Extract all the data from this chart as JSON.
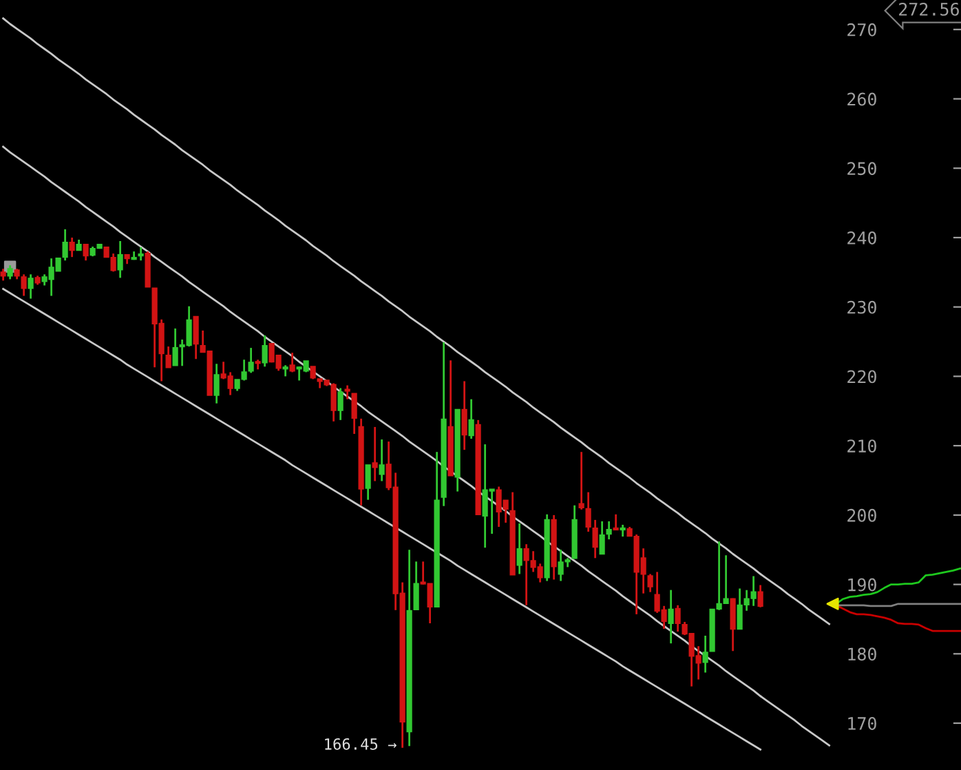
{
  "chart_data": [
    {
      "type": "candlestick",
      "categories": [
        null,
        null,
        null,
        null,
        null,
        null,
        null,
        null,
        null,
        null,
        null,
        null,
        null,
        null,
        null,
        null,
        null,
        null,
        null,
        null,
        null,
        null,
        null,
        null,
        null,
        null,
        null,
        null,
        null,
        null,
        null,
        null,
        null,
        null,
        null,
        null,
        null,
        null,
        null,
        null,
        null,
        null,
        null,
        null,
        null,
        null,
        null,
        null,
        null,
        null,
        null,
        null,
        null,
        null,
        null,
        null,
        null,
        null,
        null,
        null,
        null,
        null,
        null,
        null,
        null,
        null,
        null,
        null,
        null,
        null,
        null,
        null,
        null,
        null,
        null,
        null,
        null,
        null,
        null,
        null,
        null,
        null,
        null,
        null,
        null,
        null,
        null,
        null,
        null,
        null,
        null,
        null,
        null,
        null,
        null,
        null,
        null,
        null,
        null,
        null,
        null,
        null,
        null,
        null,
        null,
        null,
        null,
        null,
        null,
        null,
        null
      ],
      "ohlc": [
        [
          235,
          235.5,
          233.8,
          234.5
        ],
        [
          234.5,
          236,
          234,
          235.5
        ],
        [
          235.3,
          235.5,
          234,
          234.5
        ],
        [
          234.3,
          234.7,
          231.6,
          232.7
        ],
        [
          232.7,
          234.7,
          231.2,
          234.1
        ],
        [
          234.2,
          234.5,
          233.2,
          233.5
        ],
        [
          233.7,
          234.7,
          233.1,
          234.3
        ],
        [
          234,
          237,
          231.6,
          235.7
        ],
        [
          235.2,
          237,
          235.2,
          237
        ],
        [
          237.2,
          241.2,
          236.7,
          239.3
        ],
        [
          239.3,
          240,
          237.2,
          238.2
        ],
        [
          238.2,
          239.7,
          238.2,
          239
        ],
        [
          239,
          239,
          236.7,
          237.4
        ],
        [
          237.5,
          238.7,
          237.3,
          238.4
        ],
        [
          238.5,
          239.1,
          238.4,
          239
        ],
        [
          238.6,
          238.6,
          237.2,
          237.2
        ],
        [
          237.1,
          237.7,
          235.1,
          235.3
        ],
        [
          235.4,
          239.5,
          234.2,
          237.5
        ],
        [
          237.5,
          237.5,
          236.2,
          237
        ],
        [
          236.9,
          238,
          236.8,
          237.1
        ],
        [
          237.4,
          238.6,
          236.7,
          237.6
        ],
        [
          237.7,
          238,
          232.9,
          232.9
        ],
        [
          232.7,
          232.7,
          221.3,
          227.6
        ],
        [
          227.6,
          228.2,
          219.3,
          223.3
        ],
        [
          223,
          224.3,
          221.3,
          221.3
        ],
        [
          221.6,
          226.9,
          221.6,
          224.1
        ],
        [
          224.3,
          225.3,
          221.5,
          224.5
        ],
        [
          224.5,
          230.1,
          224.3,
          228.1
        ],
        [
          228.6,
          228.6,
          222.5,
          224.7
        ],
        [
          224.4,
          226.6,
          223.5,
          223.5
        ],
        [
          223.6,
          223.6,
          217.3,
          217.3
        ],
        [
          217.3,
          221.8,
          216.1,
          220.2
        ],
        [
          220.3,
          222.1,
          219.6,
          219.8
        ],
        [
          220,
          220.6,
          217.3,
          218.3
        ],
        [
          218.3,
          219.5,
          217.9,
          219.5
        ],
        [
          219.6,
          222.4,
          219.4,
          220.6
        ],
        [
          220.8,
          224.1,
          220.5,
          222
        ],
        [
          222.1,
          222.4,
          221,
          221.9
        ],
        [
          222,
          225.9,
          221.4,
          224.4
        ],
        [
          224.7,
          224.7,
          222,
          222.1
        ],
        [
          223,
          223,
          220.8,
          221.2
        ],
        [
          221.1,
          221.6,
          220,
          221.3
        ],
        [
          221.6,
          223.4,
          220.6,
          220.8
        ],
        [
          221.1,
          221.4,
          219.4,
          221.3
        ],
        [
          220.8,
          222.2,
          220.6,
          222.2
        ],
        [
          221.4,
          221.4,
          219.6,
          219.8
        ],
        [
          219.6,
          219.6,
          218.3,
          219.3
        ],
        [
          219.4,
          219.4,
          218.6,
          218.8
        ],
        [
          218.8,
          219,
          213.5,
          215.1
        ],
        [
          215.1,
          218.3,
          213.7,
          217.7
        ],
        [
          218.1,
          218.7,
          216.7,
          217.9
        ],
        [
          217.5,
          217.5,
          211.7,
          214
        ],
        [
          212.7,
          213.9,
          201.4,
          203.8
        ],
        [
          203.9,
          207.2,
          202.2,
          207.2
        ],
        [
          207.5,
          212.7,
          204.9,
          206.9
        ],
        [
          205.9,
          210.9,
          204.9,
          207.2
        ],
        [
          207.3,
          210.6,
          203.6,
          204
        ],
        [
          204,
          206.1,
          186.3,
          188.7
        ],
        [
          188.7,
          190.3,
          166.45,
          170.2
        ],
        [
          168.8,
          195,
          166.7,
          186.2
        ],
        [
          186.4,
          193.3,
          186.4,
          190.1
        ],
        [
          190.3,
          193.3,
          190,
          190.1
        ],
        [
          190.1,
          190.1,
          184.4,
          186.8
        ],
        [
          186.8,
          209.1,
          186.8,
          202.1
        ],
        [
          202.6,
          224.9,
          201.3,
          213.8
        ],
        [
          212.7,
          222.3,
          205.7,
          205.7
        ],
        [
          205.5,
          215.2,
          203.4,
          215.2
        ],
        [
          215.2,
          219.3,
          209.4,
          211.6
        ],
        [
          211.5,
          216.7,
          211,
          213.7
        ],
        [
          213,
          213.7,
          200.1,
          200.1
        ],
        [
          199.9,
          210.2,
          195.3,
          203.6
        ],
        [
          203.5,
          203.7,
          197.3,
          203.7
        ],
        [
          203.6,
          204.1,
          198.3,
          200.5
        ],
        [
          202.1,
          202.1,
          198.9,
          200.9
        ],
        [
          200.6,
          203.3,
          191.4,
          191.4
        ],
        [
          192.8,
          198.8,
          191.5,
          195.1
        ],
        [
          195.1,
          195.8,
          187,
          193.5
        ],
        [
          193.4,
          194.8,
          191.8,
          192.5
        ],
        [
          192.5,
          193,
          190.3,
          191
        ],
        [
          191,
          200.1,
          190.5,
          199.3
        ],
        [
          199.3,
          200,
          190.7,
          192.6
        ],
        [
          191.5,
          195,
          190.5,
          193.2
        ],
        [
          193.3,
          193.8,
          192.5,
          193.5
        ],
        [
          193.8,
          201.4,
          193.7,
          199.3
        ],
        [
          201.6,
          209.1,
          200.8,
          201.1
        ],
        [
          200.9,
          203.3,
          197.6,
          198.3
        ],
        [
          198.1,
          199.3,
          193.8,
          195.4
        ],
        [
          194.4,
          199.1,
          194.4,
          197.1
        ],
        [
          197.3,
          199.1,
          196.5,
          197.9
        ],
        [
          198.1,
          200.1,
          197.8,
          197.9
        ],
        [
          197.9,
          198.6,
          196.9,
          198.1
        ],
        [
          198,
          198.3,
          197,
          197
        ],
        [
          196.9,
          197.2,
          185.7,
          191.8
        ],
        [
          193.8,
          195.2,
          188.7,
          191.5
        ],
        [
          191.2,
          191.5,
          188.9,
          189.7
        ],
        [
          188.5,
          191.8,
          185.9,
          186.2
        ],
        [
          186.3,
          186.9,
          183.6,
          184.7
        ],
        [
          184.4,
          189.2,
          181.5,
          186.4
        ],
        [
          186.5,
          187,
          183.2,
          184.4
        ],
        [
          184.2,
          184.6,
          182.7,
          182.9
        ],
        [
          182.9,
          183,
          175.3,
          179.7
        ],
        [
          179.7,
          181.1,
          176.3,
          178.7
        ],
        [
          178.8,
          182.6,
          177.3,
          180.2
        ],
        [
          180.4,
          186.4,
          180.4,
          186.4
        ],
        [
          186.5,
          196.2,
          186.3,
          187.2
        ],
        [
          187.3,
          194.2,
          187.2,
          187.9
        ],
        [
          187.9,
          188,
          180.4,
          183.6
        ],
        [
          183.6,
          189.4,
          183.6,
          187
        ],
        [
          187.1,
          189.2,
          186.2,
          187.9
        ],
        [
          188,
          191.2,
          186.9,
          188.9
        ],
        [
          188.9,
          189.9,
          186.7,
          186.9
        ]
      ],
      "colors": [
        "#d21414",
        "#32c832",
        "#d21414",
        "#d21414",
        "#32c832",
        "#d21414",
        "#32c832",
        "#32c832",
        "#32c832",
        "#32c832",
        "#d21414",
        "#32c832",
        "#d21414",
        "#32c832",
        "#32c832",
        "#d21414",
        "#d21414",
        "#32c832",
        "#d21414",
        "#32c832",
        "#32c832",
        "#d21414",
        "#d21414",
        "#d21414",
        "#d21414",
        "#32c832",
        "#32c832",
        "#32c832",
        "#d21414",
        "#d21414",
        "#d21414",
        "#32c832",
        "#d21414",
        "#d21414",
        "#32c832",
        "#32c832",
        "#32c832",
        "#d21414",
        "#32c832",
        "#d21414",
        "#d21414",
        "#32c832",
        "#d21414",
        "#32c832",
        "#32c832",
        "#d21414",
        "#d21414",
        "#d21414",
        "#d21414",
        "#32c832",
        "#d21414",
        "#d21414",
        "#d21414",
        "#32c832",
        "#d21414",
        "#32c832",
        "#d21414",
        "#d21414",
        "#d21414",
        "#32c832",
        "#32c832",
        "#d21414",
        "#d21414",
        "#32c832",
        "#32c832",
        "#d21414",
        "#32c832",
        "#d21414",
        "#32c832",
        "#d21414",
        "#32c832",
        "#32c832",
        "#d21414",
        "#d21414",
        "#d21414",
        "#32c832",
        "#d21414",
        "#d21414",
        "#d21414",
        "#32c832",
        "#d21414",
        "#32c832",
        "#32c832",
        "#32c832",
        "#d21414",
        "#d21414",
        "#d21414",
        "#32c832",
        "#32c832",
        "#d21414",
        "#32c832",
        "#d21414",
        "#d21414",
        "#d21414",
        "#d21414",
        "#d21414",
        "#d21414",
        "#32c832",
        "#d21414",
        "#d21414",
        "#d21414",
        "#d21414",
        "#32c832",
        "#32c832",
        "#32c832",
        "#32c832",
        "#d21414",
        "#32c832",
        "#32c832",
        "#32c832",
        "#d21414"
      ],
      "series": [
        {
          "type": "line",
          "color": "#c8c8c8",
          "values": [
            271.6,
            270.8,
            270.1,
            269.4,
            268.7,
            267.9,
            267.2,
            266.5,
            265.7,
            265.0,
            264.3,
            263.6,
            262.8,
            262.1,
            261.4,
            260.7,
            259.9,
            259.2,
            258.5,
            257.7,
            257.0,
            256.3,
            255.6,
            254.8,
            254.1,
            253.4,
            252.6,
            251.9,
            251.2,
            250.5,
            249.7,
            249.0,
            248.3,
            247.6,
            246.8,
            246.1,
            245.4,
            244.7,
            243.9,
            243.2,
            242.5,
            241.7,
            241.0,
            240.3,
            239.6,
            238.8,
            238.1,
            237.4,
            236.6,
            235.9,
            235.2,
            234.5,
            233.7,
            233.0,
            232.3,
            231.6,
            230.8,
            230.1,
            229.4,
            228.6,
            227.9,
            227.2,
            226.5,
            225.7,
            225.0,
            224.3,
            223.5,
            222.8,
            222.1,
            221.4,
            220.6,
            219.9,
            219.2,
            218.5,
            217.7,
            217.0,
            216.3,
            215.5,
            214.8,
            214.1,
            213.4,
            212.6,
            211.9,
            211.2,
            210.5,
            209.7,
            209.0,
            208.3,
            207.5,
            206.8,
            206.1,
            205.4,
            204.6,
            203.9,
            203.2,
            202.4,
            201.7,
            201.0,
            200.3,
            199.5,
            198.8,
            198.1,
            197.4,
            196.6,
            195.9,
            195.2,
            194.4,
            193.7,
            193.0,
            192.3,
            191.5
          ]
        },
        {
          "type": "line",
          "color": "#c8c8c8",
          "values": [
            253.1,
            252.3,
            251.6,
            250.9,
            250.2,
            249.5,
            248.8,
            248.0,
            247.3,
            246.6,
            245.9,
            245.2,
            244.4,
            243.7,
            243.0,
            242.3,
            241.6,
            240.8,
            240.1,
            239.4,
            238.7,
            238.0,
            237.2,
            236.5,
            235.8,
            235.1,
            234.4,
            233.6,
            232.9,
            232.2,
            231.5,
            230.8,
            230.1,
            229.3,
            228.6,
            227.9,
            227.2,
            226.5,
            225.7,
            225.0,
            224.3,
            223.6,
            222.9,
            222.1,
            221.4,
            220.7,
            220.0,
            219.3,
            218.5,
            217.8,
            217.1,
            216.4,
            215.7,
            214.9,
            214.2,
            213.5,
            212.8,
            212.1,
            211.4,
            210.6,
            209.9,
            209.2,
            208.5,
            207.8,
            207.0,
            206.3,
            205.6,
            204.9,
            204.2,
            203.4,
            202.7,
            202.0,
            201.3,
            200.6,
            199.8,
            199.1,
            198.4,
            197.7,
            197.0,
            196.2,
            195.5,
            194.8,
            194.1,
            193.4,
            192.7,
            191.9,
            191.2,
            190.5,
            189.8,
            189.1,
            188.3,
            187.6,
            186.9,
            186.2,
            185.5,
            184.7,
            184.0,
            183.3,
            182.6,
            181.9,
            181.1,
            180.4,
            179.7,
            179.0,
            178.3,
            177.5,
            176.8,
            176.1,
            175.4,
            174.7,
            173.9
          ]
        },
        {
          "type": "line",
          "color": "#c8c8c8",
          "values": [
            232.6,
            232.0,
            231.4,
            230.8,
            230.2,
            229.6,
            229.0,
            228.4,
            227.8,
            227.2,
            226.6,
            226.0,
            225.4,
            224.8,
            224.2,
            223.6,
            223.0,
            222.4,
            221.7,
            221.1,
            220.5,
            219.9,
            219.3,
            218.7,
            218.1,
            217.5,
            216.9,
            216.3,
            215.7,
            215.1,
            214.5,
            213.9,
            213.3,
            212.7,
            212.1,
            211.5,
            210.9,
            210.3,
            209.7,
            209.1,
            208.5,
            207.9,
            207.2,
            206.6,
            206.0,
            205.4,
            204.8,
            204.2,
            203.6,
            203.0,
            202.4,
            201.8,
            201.2,
            200.6,
            200.0,
            199.4,
            198.8,
            198.2,
            197.6,
            197.0,
            196.4,
            195.8,
            195.2,
            194.6,
            194.0,
            193.4,
            192.7,
            192.1,
            191.5,
            190.9,
            190.3,
            189.7,
            189.1,
            188.5,
            187.9,
            187.3,
            186.7,
            186.1,
            185.5,
            184.9,
            184.3,
            183.7,
            183.1,
            182.5,
            181.9,
            181.3,
            180.7,
            180.1,
            179.5,
            178.9,
            178.2,
            177.6,
            177.0,
            176.4,
            175.8,
            175.2,
            174.6,
            174.0,
            173.4,
            172.8,
            172.2,
            171.6,
            171.0,
            170.4,
            169.8,
            169.2,
            168.6,
            168.0,
            167.4,
            166.8,
            166.2
          ]
        }
      ],
      "ylim": [
        163.25,
        274.25
      ],
      "yticks": [
        170,
        180,
        190,
        200,
        210,
        220,
        230,
        240,
        250,
        260,
        270
      ],
      "tick_labels": false,
      "grid": false,
      "legend": false,
      "annotations": [
        "166.45 →"
      ]
    },
    {
      "type": "line",
      "categories": [
        null,
        null,
        null,
        null,
        null,
        null,
        null,
        null,
        null,
        null,
        null,
        null,
        null,
        null,
        null,
        null,
        null,
        null,
        null,
        null,
        null,
        null,
        null,
        null,
        null,
        null,
        null,
        null,
        null,
        null
      ],
      "series": [
        {
          "color": "#c8c8c8",
          "values": [
            191.5,
            190.8,
            190.1,
            189.4,
            188.6,
            187.9,
            187.2,
            186.4,
            185.7,
            185.0,
            184.3,
            null,
            null,
            null,
            null,
            null,
            null,
            null,
            null,
            null,
            null,
            null,
            null,
            null,
            null,
            null,
            null,
            null,
            null,
            null
          ]
        },
        {
          "color": "#c8c8c8",
          "values": [
            173.9,
            173.2,
            172.5,
            171.8,
            171.1,
            170.4,
            169.6,
            168.9,
            168.2,
            167.5,
            166.8,
            null,
            null,
            null,
            null,
            null,
            null,
            null,
            null,
            null,
            null,
            null,
            null,
            null,
            null,
            null,
            null,
            null,
            null,
            null
          ]
        },
        {
          "color": "#1ec81e",
          "values": [
            null,
            null,
            null,
            null,
            null,
            null,
            null,
            null,
            null,
            null,
            null,
            187.2,
            187.9,
            188.2,
            188.3,
            188.5,
            188.6,
            188.9,
            189.5,
            190.0,
            190.0,
            190.1,
            190.1,
            190.3,
            191.3,
            191.4,
            191.6,
            191.8,
            192.0,
            192.3
          ]
        },
        {
          "color": "#c80000",
          "values": [
            null,
            null,
            null,
            null,
            null,
            null,
            null,
            null,
            null,
            null,
            null,
            187.0,
            186.5,
            186.0,
            185.7,
            185.7,
            185.6,
            185.4,
            185.2,
            184.9,
            184.4,
            184.3,
            184.3,
            184.2,
            183.7,
            183.3,
            183.3,
            183.3,
            183.3,
            183.3
          ]
        },
        {
          "color": "#808080",
          "values": [
            null,
            null,
            null,
            null,
            null,
            null,
            null,
            null,
            null,
            null,
            null,
            187.0,
            187.0,
            187.0,
            187.0,
            187.0,
            186.9,
            186.9,
            186.9,
            186.9,
            187.2,
            187.2,
            187.2,
            187.2,
            187.2,
            187.2,
            187.2,
            187.2,
            187.2,
            187.2
          ]
        }
      ],
      "ylim": [
        163.25,
        274.25
      ],
      "yticks": [
        170,
        180,
        190,
        200,
        210,
        220,
        230,
        240,
        250,
        260,
        270
      ],
      "tick_labels": "y",
      "grid": false,
      "legend": false,
      "annotations": [
        "272.56"
      ]
    }
  ]
}
